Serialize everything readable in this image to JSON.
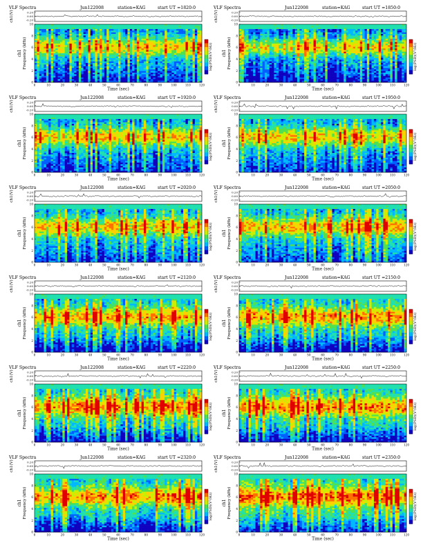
{
  "chart_data": {
    "type": "heatmap",
    "layout": "6 rows x 2 columns grid of VLF spectrogram panels",
    "panels": [
      {
        "title": "VLF Spectra",
        "date": "Jun122008",
        "station": "station=KAG",
        "start": "start  UT  =1820:0"
      },
      {
        "title": "VLF Spectra",
        "date": "Jun122008",
        "station": "station=KAG",
        "start": "start  UT  =1850:0"
      },
      {
        "title": "VLF Spectra",
        "date": "Jun122008",
        "station": "station=KAG",
        "start": "start  UT  =1920:0"
      },
      {
        "title": "VLF Spectra",
        "date": "Jun122008",
        "station": "station=KAG",
        "start": "start  UT  =1950:0"
      },
      {
        "title": "VLF Spectra",
        "date": "Jun122008",
        "station": "station=KAG",
        "start": "start  UT  =2020:0"
      },
      {
        "title": "VLF Spectra",
        "date": "Jun122008",
        "station": "station=KAG",
        "start": "start  UT  =2050:0"
      },
      {
        "title": "VLF Spectra",
        "date": "Jun122008",
        "station": "station=KAG",
        "start": "start  UT  =2120:0"
      },
      {
        "title": "VLF Spectra",
        "date": "Jun122008",
        "station": "station=KAG",
        "start": "start  UT  =2150:0"
      },
      {
        "title": "VLF Spectra",
        "date": "Jun122008",
        "station": "station=KAG",
        "start": "start  UT  =2220:0"
      },
      {
        "title": "VLF Spectra",
        "date": "Jun122008",
        "station": "station=KAG",
        "start": "start  UT  =2250:0"
      },
      {
        "title": "VLF Spectra",
        "date": "Jun122008",
        "station": "station=KAG",
        "start": "start  UT  =2320:0"
      },
      {
        "title": "VLF Spectra",
        "date": "Jun122008",
        "station": "station=KAG",
        "start": "start  UT  =2350:0"
      }
    ],
    "waveform_ylabel": "ch1(V)",
    "waveform_ticks": [
      "0.20",
      "0.00",
      "-0.20"
    ],
    "spectrogram_ylabel_line1": "ch1",
    "spectrogram_ylabel_line2": "Frequency  (kHz)",
    "xlabel": "Time  (sec)",
    "x_ticks": [
      0,
      10,
      20,
      30,
      40,
      50,
      60,
      70,
      80,
      90,
      100,
      110,
      120
    ],
    "y_ticks": [
      0,
      2,
      4,
      6,
      8,
      10
    ],
    "xlim": [
      0,
      120
    ],
    "ylim": [
      0,
      10
    ],
    "colorbar_label": "log(PSD)(V²/Hz)",
    "colorscale": [
      "#1000c0",
      "#0060ff",
      "#00b8ff",
      "#20e0b0",
      "#50e050",
      "#c8f000",
      "#ffd000",
      "#ff7000",
      "#e00000"
    ]
  }
}
